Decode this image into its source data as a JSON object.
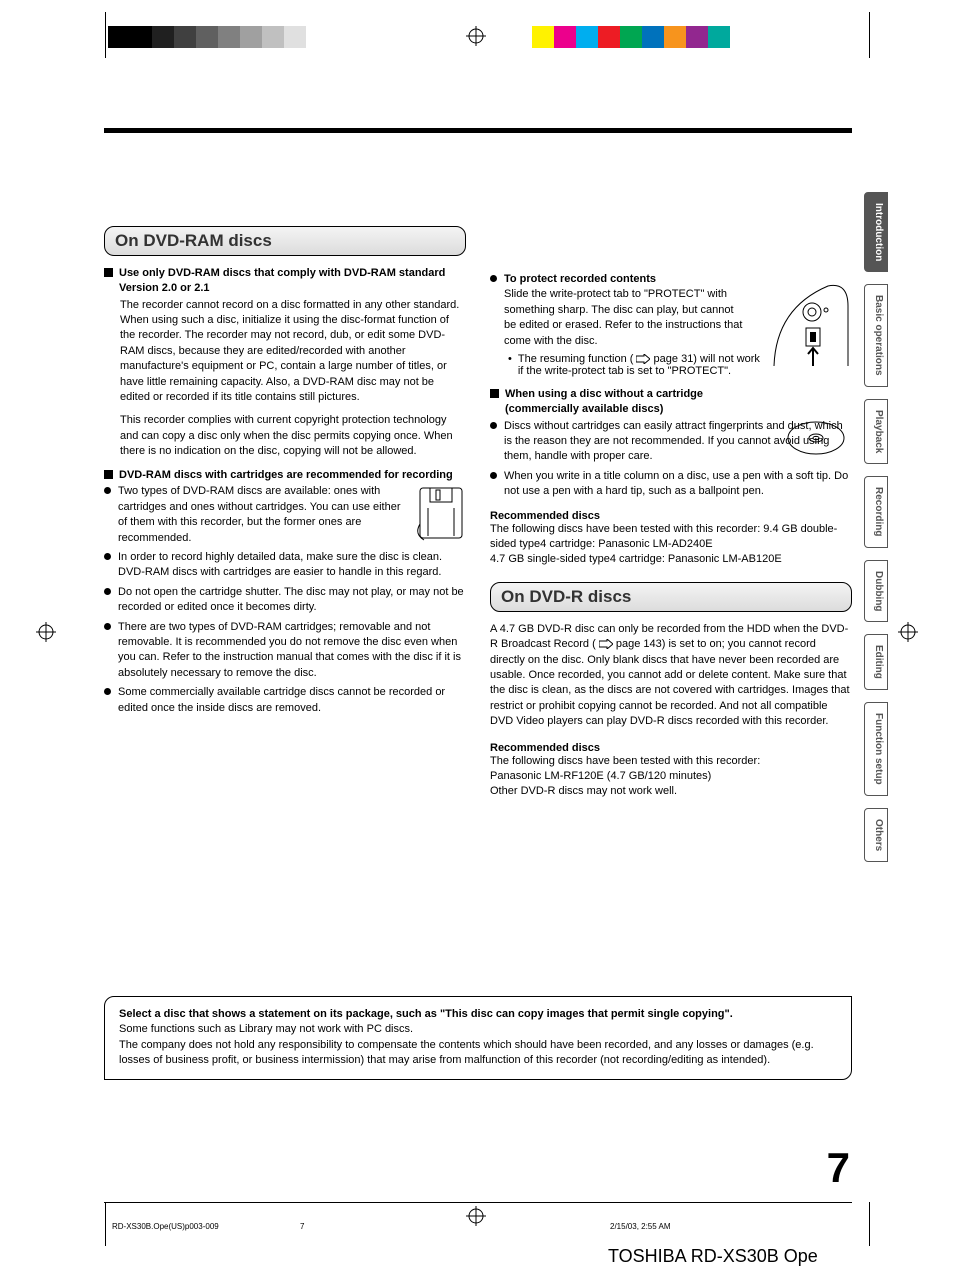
{
  "colors": {
    "dark_swatches": [
      "#000000",
      "#000000",
      "#202020",
      "#404040",
      "#606060",
      "#808080",
      "#a0a0a0",
      "#c0c0c0",
      "#e0e0e0"
    ],
    "color_swatches": [
      "#fff200",
      "#ec008c",
      "#00aeef",
      "#ed1c24",
      "#00a651",
      "#0072bc",
      "#f7941d",
      "#92278f",
      "#00a99d"
    ]
  },
  "tabs": {
    "items": [
      {
        "label": "Introduction",
        "active": true
      },
      {
        "label": "Basic operations",
        "active": false
      },
      {
        "label": "Playback",
        "active": false
      },
      {
        "label": "Recording",
        "active": false
      },
      {
        "label": "Dubbing",
        "active": false
      },
      {
        "label": "Editing",
        "active": false
      },
      {
        "label": "Function setup",
        "active": false
      },
      {
        "label": "Others",
        "active": false
      }
    ]
  },
  "left": {
    "h1": "On DVD-RAM discs",
    "s1_title": "Use only DVD-RAM discs that comply with DVD-RAM standard Version 2.0 or 2.1",
    "s1_p1": "The recorder cannot record on a disc formatted in any other standard. When using such a disc, initialize it using the disc-format function of the recorder. The recorder may not record, dub, or edit some DVD-RAM discs, because they are edited/recorded with another manufacture's equipment or PC, contain a large number of titles, or have little remaining capacity. Also, a DVD-RAM disc may not be edited or recorded if its title contains still pictures.",
    "s1_p2": "This recorder complies with current copyright protection technology and can copy a disc only when the disc permits copying once. When there is no indication on the disc, copying will not be allowed.",
    "s2_title": "DVD-RAM discs with cartridges are recommended for recording",
    "s2_b1": "Two types of DVD-RAM discs are available: ones with cartridges and ones without cartridges. You can use either of them with this recorder, but the former ones are recommended.",
    "s2_b2": "In order to record highly detailed data, make sure the disc is clean. DVD-RAM discs with cartridges are easier to handle in this regard.",
    "s2_b3": "Do not open the cartridge shutter. The disc may not play, or may not be recorded or edited once it becomes dirty.",
    "s2_b4": "There are two types of DVD-RAM cartridges; removable and not removable. It is recommended you do not remove the disc even when you can. Refer to the instruction manual that comes with the disc if it is absolutely necessary to remove the disc.",
    "s2_b5": "Some commercially available cartridge discs cannot be recorded or edited once the inside discs are removed."
  },
  "right": {
    "protect_title": "To protect recorded contents",
    "protect_p": "Slide the write-protect tab to \"PROTECT\" with something sharp. The disc can play, but cannot be edited or erased. Refer to the instructions that come with the disc.",
    "protect_sub_a": "The resuming function (",
    "protect_sub_page": " page 31) will not work if the write-protect tab is set to \"PROTECT\".",
    "nocart_title": "When using a disc without a cartridge (commercially available discs)",
    "nocart_b1": "Discs without cartridges can easily attract fingerprints and dust, which is the reason they are not recommended. If you cannot avoid using them, handle with proper care.",
    "nocart_b2": "When you write in a title column on a disc, use a pen with a soft tip. Do not use a pen with a hard tip, such as a ballpoint pen.",
    "rec1_title": "Recommended discs",
    "rec1_p": "The following discs have been tested with this recorder: 9.4 GB double-sided type4 cartridge: Panasonic LM-AD240E",
    "rec1_p2": "4.7 GB single-sided type4 cartridge: Panasonic LM-AB120E",
    "h2": "On DVD-R discs",
    "dvr_p_a": "A 4.7 GB DVD-R disc can only be recorded from the HDD when the DVD-R Broadcast Record (",
    "dvr_p_b": " page 143) is set to on; you cannot record directly on the disc. Only blank discs that have never been recorded are usable. Once recorded, you cannot add or delete content. Make sure that the disc is clean, as the discs are not covered with cartridges. Images that restrict or prohibit copying cannot be recorded. And not all compatible DVD Video players can play DVD-R discs recorded with this recorder.",
    "rec2_title": "Recommended discs",
    "rec2_p1": "The following discs have been tested with this recorder:",
    "rec2_p2": "Panasonic LM-RF120E (4.7 GB/120 minutes)",
    "rec2_p3": "Other DVD-R discs may not work well."
  },
  "disclaimer": {
    "bold": "Select a disc that shows a statement on its package, such as \"This disc can copy images that permit single copying\".",
    "p1": "Some functions such as Library may not work with PC discs.",
    "p2": "The company does not hold any responsibility to compensate the contents which should have been recorded, and any losses or damages (e.g. losses of business profit, or business intermission) that may arise from malfunction of this recorder (not recording/editing as intended)."
  },
  "page_number": "7",
  "footer": {
    "file": "RD-XS30B.Ope(US)p003-009",
    "mid": "7",
    "date": "2/15/03, 2:55 AM",
    "big": "TOSHIBA RD-XS30B Ope"
  }
}
